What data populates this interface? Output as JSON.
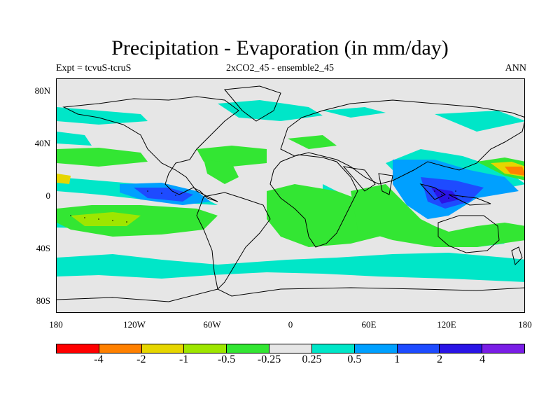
{
  "title": "Precipitation - Evaporation (in mm/day)",
  "subtitle_left": "Expt = tcvuS-tcruS",
  "subtitle_center": "2xCO2_45 - ensemble2_45",
  "subtitle_right": "ANN",
  "y_ticks": [
    "80N",
    "40N",
    "0",
    "40S",
    "80S"
  ],
  "x_ticks": [
    "180",
    "120W",
    "60W",
    "0",
    "60E",
    "120E",
    "180"
  ],
  "colorbar": {
    "colors": [
      "#ff0000",
      "#ff8000",
      "#e6d600",
      "#9ee600",
      "#33e633",
      "#e6e6e6",
      "#00e6c8",
      "#00a0ff",
      "#1e4bff",
      "#2a14e6",
      "#7a1ee6"
    ],
    "labels": [
      "-4",
      "-2",
      "-1",
      "-0.5",
      "-0.25",
      "0.25",
      "0.5",
      "1",
      "2",
      "4"
    ]
  },
  "legend_meaning": {
    "wetter": "blue/cyan = positive P-E change",
    "drier": "green/yellow/red = negative P-E change"
  }
}
